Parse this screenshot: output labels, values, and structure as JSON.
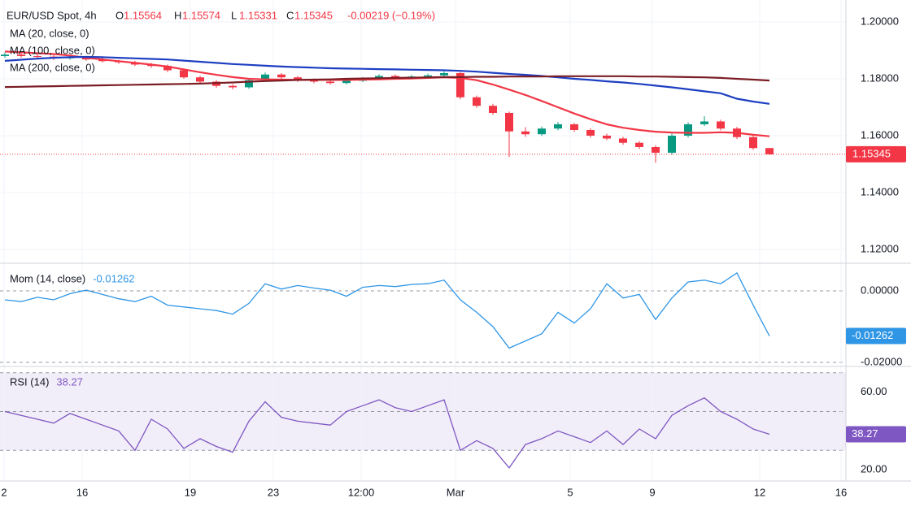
{
  "chart_data": [
    {
      "type": "candlestick",
      "title": "EUR/USD Spot, 4h",
      "ohlc_labels": [
        "O",
        "H",
        "L",
        "C"
      ],
      "change_label": "-0.00219 (−0.19%)",
      "xlim": [
        -0.3,
        51.7
      ],
      "ylim": [
        1.11543,
        1.2077
      ],
      "yticks": [
        {
          "value": 1.2,
          "label": "1.20000"
        },
        {
          "value": 1.18,
          "label": "1.18000"
        },
        {
          "value": 1.16,
          "label": "1.16000"
        },
        {
          "value": 1.14,
          "label": "1.14000"
        },
        {
          "value": 1.12,
          "label": "1.12000"
        }
      ],
      "grid": true,
      "up_color": "#089981",
      "down_color": "#f23645",
      "open": [
        1.188,
        1.1885,
        1.188,
        1.1878,
        1.1872,
        1.1875,
        1.1868,
        1.1862,
        1.1858,
        1.185,
        1.1845,
        1.183,
        1.1805,
        1.179,
        1.1775,
        1.177,
        1.1795,
        1.1815,
        1.1805,
        1.1795,
        1.179,
        1.1785,
        1.1793,
        1.18,
        1.181,
        1.1805,
        1.1808,
        1.1812,
        1.182,
        1.1735,
        1.1705,
        1.168,
        1.1615,
        1.1605,
        1.1625,
        1.164,
        1.162,
        1.16,
        1.159,
        1.1575,
        1.156,
        1.154,
        1.16,
        1.164,
        1.165,
        1.1625,
        1.1595,
        1.15564
      ],
      "high": [
        1.1892,
        1.1891,
        1.1887,
        1.1884,
        1.1881,
        1.188,
        1.1873,
        1.1867,
        1.1863,
        1.1856,
        1.185,
        1.1836,
        1.1811,
        1.1795,
        1.1781,
        1.1801,
        1.1822,
        1.182,
        1.181,
        1.1801,
        1.1796,
        1.1799,
        1.1806,
        1.1816,
        1.1815,
        1.1814,
        1.1818,
        1.1826,
        1.1824,
        1.1741,
        1.1712,
        1.1685,
        1.163,
        1.1632,
        1.1648,
        1.1645,
        1.1626,
        1.1607,
        1.1596,
        1.1581,
        1.1566,
        1.1607,
        1.1647,
        1.1668,
        1.1656,
        1.1631,
        1.1601,
        1.15574
      ],
      "low": [
        1.1874,
        1.1874,
        1.1871,
        1.1866,
        1.1867,
        1.1863,
        1.1857,
        1.1852,
        1.1845,
        1.1839,
        1.1824,
        1.18,
        1.1782,
        1.1768,
        1.1763,
        1.1765,
        1.179,
        1.1799,
        1.1789,
        1.1784,
        1.1779,
        1.178,
        1.1788,
        1.1795,
        1.1799,
        1.18,
        1.1803,
        1.1807,
        1.1728,
        1.1698,
        1.1673,
        1.1525,
        1.1596,
        1.1599,
        1.1619,
        1.1613,
        1.1593,
        1.1584,
        1.1568,
        1.1553,
        1.1505,
        1.1533,
        1.1594,
        1.1634,
        1.1619,
        1.1588,
        1.155,
        1.15331
      ],
      "close": [
        1.1885,
        1.188,
        1.1878,
        1.1872,
        1.1875,
        1.1868,
        1.1862,
        1.1858,
        1.185,
        1.1845,
        1.183,
        1.1805,
        1.179,
        1.1775,
        1.177,
        1.1795,
        1.1815,
        1.1805,
        1.1795,
        1.179,
        1.1785,
        1.1793,
        1.18,
        1.181,
        1.1805,
        1.1808,
        1.1812,
        1.182,
        1.1735,
        1.1705,
        1.168,
        1.1615,
        1.1605,
        1.1625,
        1.164,
        1.162,
        1.16,
        1.159,
        1.1575,
        1.156,
        1.154,
        1.16,
        1.164,
        1.165,
        1.1625,
        1.1595,
        1.15564,
        1.15345
      ],
      "series": [
        {
          "name": "MA (20, close, 0)",
          "color": "#f23645",
          "values": [
            1.1896,
            1.1893,
            1.189,
            1.1887,
            1.1882,
            1.1874,
            1.1868,
            1.1862,
            1.1856,
            1.185,
            1.1843,
            1.1833,
            1.1823,
            1.1814,
            1.1806,
            1.18,
            1.1798,
            1.1797,
            1.1796,
            1.1796,
            1.1796,
            1.1796,
            1.1797,
            1.1798,
            1.18,
            1.1801,
            1.1803,
            1.1805,
            1.1803,
            1.1795,
            1.178,
            1.1762,
            1.1743,
            1.1722,
            1.17,
            1.1678,
            1.1658,
            1.164,
            1.1628,
            1.162,
            1.1614,
            1.1611,
            1.161,
            1.161,
            1.1612,
            1.161,
            1.1603,
            1.1598
          ]
        },
        {
          "name": "MA (100, close, 0)",
          "color": "#1e3fc2",
          "values": [
            1.1863,
            1.1867,
            1.1871,
            1.1874,
            1.1876,
            1.1877,
            1.1876,
            1.1874,
            1.1872,
            1.187,
            1.1868,
            1.1864,
            1.186,
            1.1856,
            1.1852,
            1.1849,
            1.1846,
            1.1843,
            1.1841,
            1.1839,
            1.1837,
            1.1836,
            1.1835,
            1.1834,
            1.1833,
            1.1832,
            1.1831,
            1.183,
            1.1828,
            1.1825,
            1.1821,
            1.1817,
            1.1814,
            1.181,
            1.1805,
            1.18,
            1.1796,
            1.1791,
            1.1787,
            1.1782,
            1.1776,
            1.177,
            1.1763,
            1.1756,
            1.1749,
            1.173,
            1.172,
            1.1712
          ]
        },
        {
          "name": "MA (200, close, 0)",
          "color": "#7b1d24",
          "values": [
            1.1771,
            1.1772,
            1.1773,
            1.1774,
            1.1775,
            1.1776,
            1.1777,
            1.1778,
            1.1779,
            1.178,
            1.1781,
            1.1782,
            1.1783,
            1.1785,
            1.1787,
            1.179,
            1.1792,
            1.1794,
            1.1796,
            1.1797,
            1.1798,
            1.18,
            1.1801,
            1.1802,
            1.1803,
            1.1804,
            1.1805,
            1.1806,
            1.1806,
            1.1807,
            1.1807,
            1.1808,
            1.1808,
            1.1808,
            1.1809,
            1.1809,
            1.1809,
            1.1809,
            1.1809,
            1.1808,
            1.1808,
            1.1807,
            1.1806,
            1.1805,
            1.1803,
            1.18,
            1.1797,
            1.1794
          ]
        }
      ]
    },
    {
      "type": "line",
      "title": "Mom (14, close)",
      "color": "#2f96e6",
      "xlim": [
        -0.3,
        51.7
      ],
      "ylim": [
        -0.0209,
        0.0075
      ],
      "yticks": [
        {
          "value": 0,
          "label": "0.00000"
        },
        {
          "value": -0.02,
          "label": "-0.02000"
        }
      ],
      "grid": true,
      "values": [
        -0.0025,
        -0.003,
        -0.0018,
        -0.0025,
        -0.0008,
        0.0002,
        -0.001,
        -0.0022,
        -0.003,
        -0.0015,
        -0.004,
        -0.0045,
        -0.005,
        -0.0055,
        -0.0065,
        -0.0035,
        0.002,
        0.0005,
        0.0015,
        0.0008,
        0.0002,
        -0.0015,
        0.001,
        0.0015,
        0.0012,
        0.0018,
        0.002,
        0.003,
        -0.0025,
        -0.006,
        -0.01,
        -0.016,
        -0.014,
        -0.012,
        -0.006,
        -0.009,
        -0.005,
        0.002,
        -0.002,
        -0.001,
        -0.008,
        -0.002,
        0.0025,
        0.003,
        0.002,
        0.005,
        -0.004,
        -0.01262
      ]
    },
    {
      "type": "line",
      "title": "RSI (14)",
      "color": "#7e57c2",
      "xlim": [
        -0.3,
        51.7
      ],
      "ylim": [
        14.2,
        72.8
      ],
      "yticks": [
        {
          "value": 60,
          "label": "60.00"
        },
        {
          "value": 20,
          "label": "20.00"
        }
      ],
      "levels": [
        70,
        50,
        30
      ],
      "xticks": [
        {
          "value": -0.05,
          "label": "2"
        },
        {
          "value": 4.75,
          "label": "16"
        },
        {
          "value": 11.4,
          "label": "19"
        },
        {
          "value": 16.5,
          "label": "23"
        },
        {
          "value": 21.9,
          "label": "12:00"
        },
        {
          "value": 27.7,
          "label": "Mar"
        },
        {
          "value": 34.75,
          "label": "5"
        },
        {
          "value": 39.8,
          "label": "9"
        },
        {
          "value": 46.4,
          "label": "12"
        },
        {
          "value": 51.4,
          "label": "16"
        }
      ],
      "values": [
        50,
        48,
        46,
        44,
        49,
        46,
        43,
        40,
        30,
        46,
        41,
        31,
        36,
        32,
        29,
        45,
        55,
        47,
        45,
        44,
        43,
        50,
        53,
        56,
        52,
        50,
        53,
        56,
        30,
        35,
        31,
        21,
        33,
        36,
        40,
        37,
        34,
        40,
        33,
        41,
        36,
        48,
        53,
        57,
        50,
        46,
        41,
        38.27
      ]
    }
  ]
}
